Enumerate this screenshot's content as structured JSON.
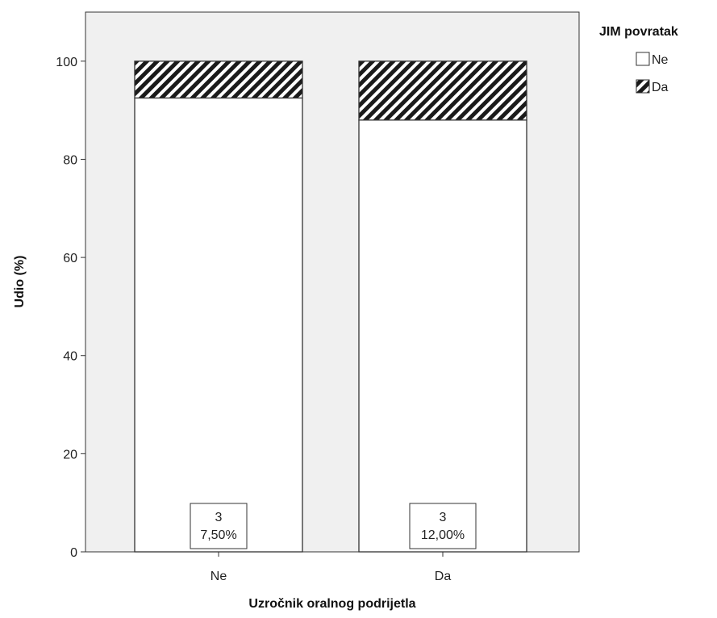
{
  "chart_data": {
    "type": "bar",
    "stacked": true,
    "percent": true,
    "categories": [
      "Ne",
      "Da"
    ],
    "series": [
      {
        "name": "Ne",
        "values": [
          92.5,
          88.0
        ],
        "pattern": "none",
        "color": "#ffffff"
      },
      {
        "name": "Da",
        "values": [
          7.5,
          12.0
        ],
        "pattern": "diagonal-hatch",
        "color": "#1a1a1a"
      }
    ],
    "data_labels": [
      {
        "category": "Ne",
        "series": "Da",
        "count": "3",
        "percent": "7,50%"
      },
      {
        "category": "Da",
        "series": "Da",
        "count": "3",
        "percent": "12,00%"
      }
    ],
    "xlabel": "Uzročnik oralnog podrijetla",
    "ylabel": "Udio (%)",
    "ylim": [
      0,
      110
    ],
    "yticks": [
      "0",
      "20",
      "40",
      "60",
      "80",
      "100"
    ],
    "legend": {
      "title": "JIM povratak",
      "position": "top-right",
      "entries": [
        "Ne",
        "Da"
      ]
    },
    "grid": false,
    "plot_background": "#f0f0f0"
  }
}
